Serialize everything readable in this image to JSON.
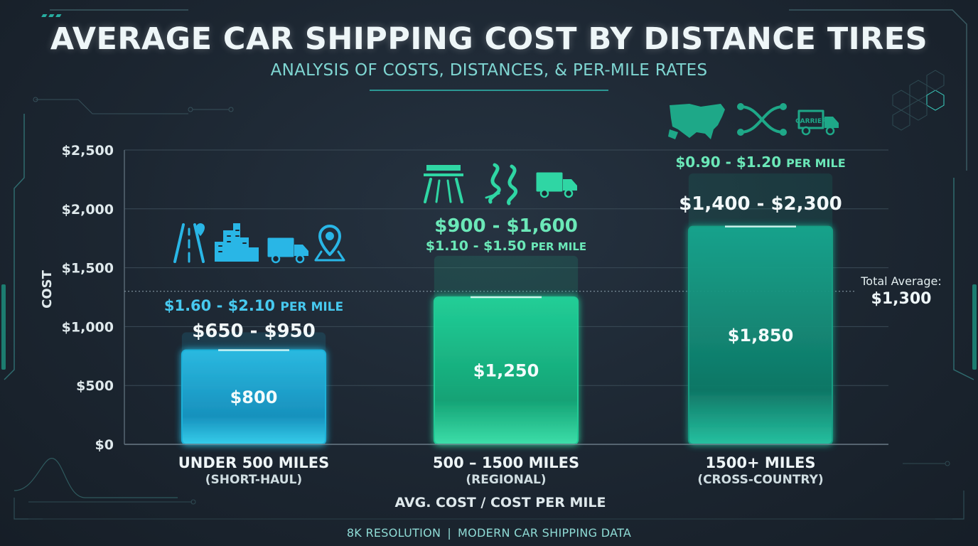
{
  "header": {
    "title": "AVERAGE CAR SHIPPING COST BY DISTANCE TIRES",
    "subtitle": "ANALYSIS OF COSTS, DISTANCES, & PER-MILE RATES"
  },
  "footer": {
    "left": "8K RESOLUTION",
    "separator": "|",
    "right": "MODERN CAR SHIPPING DATA"
  },
  "colors": {
    "short_haul": "#1fb8e0",
    "regional": "#20d29a",
    "cross_country": "#16a488",
    "accent_text_blue": "#47c9ef",
    "accent_text_green": "#6be8b8"
  },
  "chart_data": {
    "type": "bar",
    "ylabel": "COST",
    "xlabel": "AVG. COST / COST PER MILE",
    "ylim": [
      0,
      2500
    ],
    "yticks": [
      {
        "value": 0,
        "label": "$0"
      },
      {
        "value": 500,
        "label": "$500"
      },
      {
        "value": 1000,
        "label": "$1,000"
      },
      {
        "value": 1500,
        "label": "$1,500"
      },
      {
        "value": 2000,
        "label": "$2,000"
      },
      {
        "value": 2500,
        "label": "$2,500"
      }
    ],
    "grid": true,
    "categories": [
      {
        "label": "UNDER 500 MILES",
        "sublabel": "(SHORT-HAUL)"
      },
      {
        "label": "500 – 1500 MILES",
        "sublabel": "(REGIONAL)"
      },
      {
        "label": "1500+ MILES",
        "sublabel": "(CROSS-COUNTRY)"
      }
    ],
    "values": [
      800,
      1250,
      1850
    ],
    "value_labels": [
      "$800",
      "$1,250",
      "$1,850"
    ],
    "ranges": [
      {
        "low": 650,
        "high": 950,
        "label": "$650 - $950"
      },
      {
        "low": 900,
        "high": 1600,
        "label": "$900 - $1,600"
      },
      {
        "low": 1400,
        "high": 2300,
        "label": "$1,400 - $2,300"
      }
    ],
    "per_mile": [
      {
        "range": "$1.60 - $2.10",
        "unit": "PER MILE"
      },
      {
        "range": "$1.10 - $1.50",
        "unit": "PER MILE"
      },
      {
        "range": "$0.90 - $1.20",
        "unit": "PER MILE"
      }
    ],
    "icons": [
      [
        "road-icon",
        "city-skyline-icon",
        "truck-icon",
        "map-pin-icon"
      ],
      [
        "highway-icon",
        "winding-road-icon",
        "truck-icon"
      ],
      [
        "usa-map-icon",
        "route-icon",
        "carrier-truck-icon"
      ]
    ],
    "icon_text": {
      "carrier": "CARRIER"
    },
    "reference_line": {
      "value": 1300,
      "label": "Total Average:",
      "value_label": "$1,300"
    }
  }
}
